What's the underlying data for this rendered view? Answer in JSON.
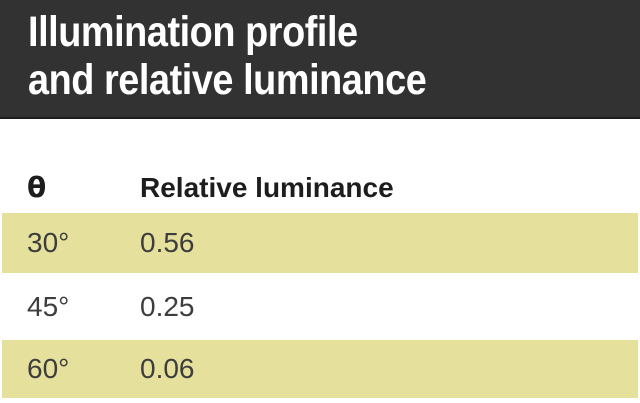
{
  "title": {
    "line1": "Illumination profile",
    "line2": "and relative luminance"
  },
  "table": {
    "columns": [
      {
        "label": "θ"
      },
      {
        "label": "Relative luminance"
      }
    ],
    "rows": [
      {
        "theta": "30°",
        "luminance": "0.56"
      },
      {
        "theta": "45°",
        "luminance": "0.25"
      },
      {
        "theta": "60°",
        "luminance": "0.06"
      }
    ]
  },
  "colors": {
    "header_bg": "#323232",
    "header_border": "#1c1c1c",
    "header_text": "#ffffff",
    "header_row_text": "#1d1d1d",
    "row_highlight": "#e5e09c",
    "body_text": "#3d3d3d"
  },
  "chart_data": {
    "type": "table",
    "title": "Illumination profile and relative luminance",
    "columns": [
      "θ",
      "Relative luminance"
    ],
    "rows": [
      [
        "30°",
        0.56
      ],
      [
        "45°",
        0.25
      ],
      [
        "60°",
        0.06
      ]
    ],
    "highlighted_rows": [
      0,
      2
    ]
  }
}
